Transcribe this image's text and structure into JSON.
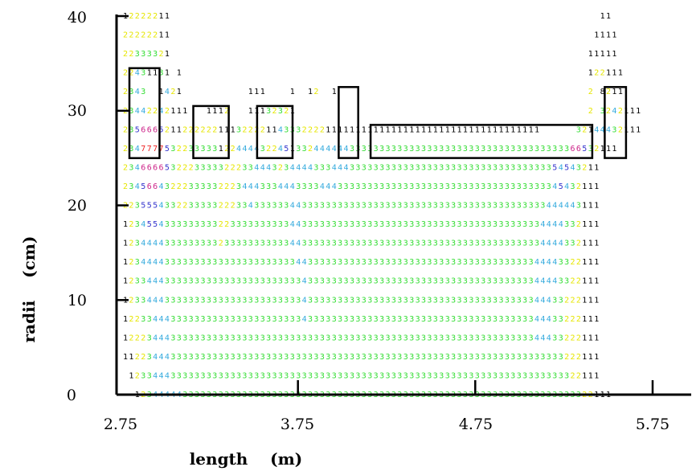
{
  "chart_data": {
    "type": "heatmap",
    "xlabel": "length    (m)",
    "ylabel": "radii    (cm)",
    "x_ticks": [
      "2.75",
      "3.75",
      "4.75",
      "5.75"
    ],
    "y_ticks": [
      "0",
      "10",
      "20",
      "30",
      "40"
    ],
    "xlim": [
      2.75,
      5.75
    ],
    "ylim": [
      0,
      40
    ],
    "grid": false,
    "legend": "none",
    "palette": {
      "1": "#000000",
      "2": "#e6e600",
      "3": "#33dd33",
      "4": "#33aadd",
      "5": "#3333cc",
      "6": "#cc2288",
      "7": "#ee2222"
    },
    "rows": [
      {
        "y": 40,
        "cells": "12222211                                                                        11   "
      },
      {
        "y": 38,
        "cells": "22222211                                                                       1111  "
      },
      {
        "y": 36,
        "cells": "22333321                                                                      11111  "
      },
      {
        "y": 34,
        "cells": "22431131 1                                                                    122111 "
      },
      {
        "y": 32,
        "cells": "2343  1421           111    1  12  1                                          2 8211 "
      },
      {
        "y": 30,
        "cells": "23442242111   1112   11132321                                                 2 3242111"
      },
      {
        "y": 28,
        "cells": "2356665211222222111322221143332222111111111111111111111111111111111111      32144432111"
      },
      {
        "y": 26,
        "cells": "23477775322333331224444322451332444444333333333333333333333333333333333333366532111"
      },
      {
        "y": 24,
        "cells": "23466665322233333222334443234444333444333333333333333333333333333333333354543211"
      },
      {
        "y": 22,
        "cells": "23456643222333332223444333444333344433333333333333333333333333333333333345432111"
      },
      {
        "y": 20,
        "cells": "22355543322333332223343333334433333333333333333333333333333333333333333444443111"
      },
      {
        "y": 18,
        "cells": "12345543333333332233333333334433333333333333333333333333333333333333334444332111"
      },
      {
        "y": 16,
        "cells": "12344443333333332333333333334433333333333333333333333333333333333333334444332111"
      },
      {
        "y": 14,
        "cells": "12344443333333333333333333333443333333333333333333333333333333333333344443322111"
      },
      {
        "y": 12,
        "cells": "12334443333333333333333333333343333333333333333333333333333333333333344443322111"
      },
      {
        "y": 10,
        "cells": "12334443333333333333333333333343333333333333333333333333333333333333344433222111"
      },
      {
        "y": 8,
        "cells": "12233444333333333333333333333343333333333333333333333333333333333333344433222111"
      },
      {
        "y": 6,
        "cells": "12223444333333333333333333333333333333333333333333333333333333333333344433222111"
      },
      {
        "y": 4,
        "cells": "11223444333333333333333333333333333333333333333333333333333333333333333333222111"
      },
      {
        "y": 2,
        "cells": " 1233444333333333333333333333333333333333333333333333333333333333333333333322111"
      },
      {
        "y": 0,
        "cells": "  12344444333333333333333333333333333333333333333333333333333333333333333333322111"
      }
    ],
    "structures": [
      {
        "x0": 2.8,
        "x1": 2.97,
        "y0": 25,
        "y1": 34.5
      },
      {
        "x0": 3.16,
        "x1": 3.36,
        "y0": 25,
        "y1": 30.5
      },
      {
        "x0": 3.52,
        "x1": 3.72,
        "y0": 25,
        "y1": 30.5
      },
      {
        "x0": 3.98,
        "x1": 4.09,
        "y0": 25,
        "y1": 32.5
      },
      {
        "x0": 4.16,
        "x1": 5.41,
        "y0": 25,
        "y1": 28.5
      },
      {
        "x0": 5.48,
        "x1": 5.6,
        "y0": 25,
        "y1": 32.5
      }
    ]
  }
}
